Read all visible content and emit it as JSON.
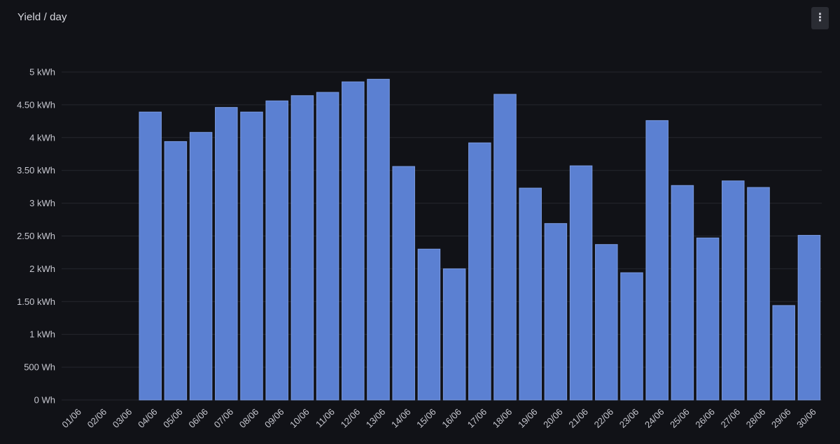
{
  "panel": {
    "title": "Yield / day",
    "menu_icon": "vertical-ellipsis-icon",
    "menu_glyph": "⋮"
  },
  "colors": {
    "background": "#111217",
    "bar_fill": "#5b80d2",
    "bar_stroke": "#7a9ae0",
    "grid": "#25272e",
    "text": "#c7c8d0"
  },
  "chart_data": {
    "type": "bar",
    "title": "Yield / day",
    "xlabel": "",
    "ylabel": "",
    "unit": "Wh",
    "ylim": [
      0,
      5000
    ],
    "grid": true,
    "y_ticks": [
      {
        "value": 0,
        "label": "0 Wh"
      },
      {
        "value": 500,
        "label": "500 Wh"
      },
      {
        "value": 1000,
        "label": "1 kWh"
      },
      {
        "value": 1500,
        "label": "1.50 kWh"
      },
      {
        "value": 2000,
        "label": "2 kWh"
      },
      {
        "value": 2500,
        "label": "2.50 kWh"
      },
      {
        "value": 3000,
        "label": "3 kWh"
      },
      {
        "value": 3500,
        "label": "3.50 kWh"
      },
      {
        "value": 4000,
        "label": "4 kWh"
      },
      {
        "value": 4500,
        "label": "4.50 kWh"
      },
      {
        "value": 5000,
        "label": "5 kWh"
      }
    ],
    "categories": [
      "01/06",
      "02/06",
      "03/06",
      "04/06",
      "05/06",
      "06/06",
      "07/06",
      "08/06",
      "09/06",
      "10/06",
      "11/06",
      "12/06",
      "13/06",
      "14/06",
      "15/06",
      "16/06",
      "17/06",
      "18/06",
      "19/06",
      "20/06",
      "21/06",
      "22/06",
      "23/06",
      "24/06",
      "25/06",
      "26/06",
      "27/06",
      "28/06",
      "29/06",
      "30/06"
    ],
    "values": [
      0,
      0,
      0,
      4390,
      3940,
      4080,
      4460,
      4390,
      4560,
      4640,
      4690,
      4850,
      4890,
      3560,
      2300,
      2000,
      3920,
      4660,
      3230,
      2690,
      3570,
      2370,
      1940,
      4260,
      3270,
      2470,
      3340,
      3240,
      1440,
      2510
    ]
  }
}
